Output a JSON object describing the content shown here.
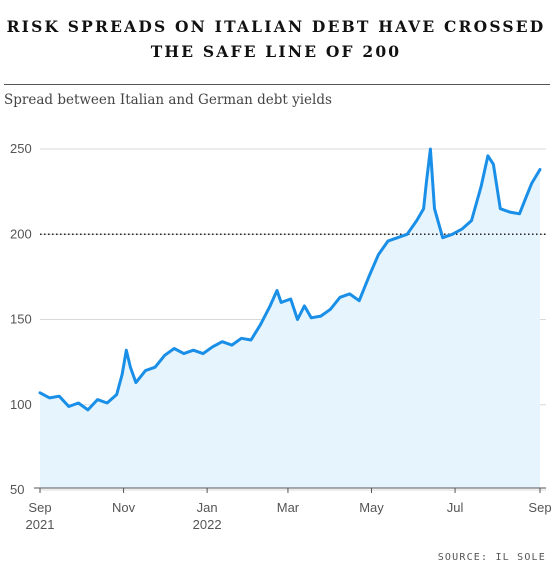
{
  "title_line1": "RISK SPREADS ON ITALIAN DEBT HAVE CROSSED",
  "title_line2": "THE SAFE LINE OF 200",
  "subtitle": "Spread between Italian and German debt yields",
  "source": "SOURCE: IL SOLE",
  "colors": {
    "line": "#1a8fe8",
    "fill": "#e6f4fd",
    "grid": "#d9d9d9",
    "reference": "#222222"
  },
  "chart_data": {
    "type": "area",
    "title": "RISK SPREADS ON ITALIAN DEBT HAVE CROSSED THE SAFE LINE OF 200",
    "subtitle": "Spread between Italian and German debt yields",
    "ylim": [
      50,
      250
    ],
    "yticks": [
      50,
      100,
      150,
      200,
      250
    ],
    "xlim": [
      "2021-09-01",
      "2022-09-01"
    ],
    "xticks": [
      {
        "date": "2021-09-01",
        "label": "Sep",
        "sublabel": "2021"
      },
      {
        "date": "2021-11-01",
        "label": "Nov",
        "sublabel": ""
      },
      {
        "date": "2022-01-01",
        "label": "Jan",
        "sublabel": "2022"
      },
      {
        "date": "2022-03-01",
        "label": "Mar",
        "sublabel": ""
      },
      {
        "date": "2022-05-01",
        "label": "May",
        "sublabel": ""
      },
      {
        "date": "2022-07-01",
        "label": "Jul",
        "sublabel": ""
      },
      {
        "date": "2022-09-01",
        "label": "Sep",
        "sublabel": ""
      }
    ],
    "reference_line": {
      "value": 200,
      "style": "dotted"
    },
    "grid": "horizontal",
    "series": [
      {
        "points": [
          [
            "2021-09-01",
            107
          ],
          [
            "2021-09-08",
            104
          ],
          [
            "2021-09-15",
            105
          ],
          [
            "2021-09-22",
            99
          ],
          [
            "2021-09-29",
            101
          ],
          [
            "2021-10-06",
            97
          ],
          [
            "2021-10-13",
            103
          ],
          [
            "2021-10-20",
            101
          ],
          [
            "2021-10-27",
            106
          ],
          [
            "2021-10-31",
            118
          ],
          [
            "2021-11-03",
            132
          ],
          [
            "2021-11-06",
            122
          ],
          [
            "2021-11-10",
            113
          ],
          [
            "2021-11-17",
            120
          ],
          [
            "2021-11-24",
            122
          ],
          [
            "2021-12-01",
            129
          ],
          [
            "2021-12-08",
            133
          ],
          [
            "2021-12-15",
            130
          ],
          [
            "2021-12-22",
            132
          ],
          [
            "2021-12-29",
            130
          ],
          [
            "2022-01-05",
            134
          ],
          [
            "2022-01-12",
            137
          ],
          [
            "2022-01-19",
            135
          ],
          [
            "2022-01-26",
            139
          ],
          [
            "2022-02-02",
            138
          ],
          [
            "2022-02-09",
            147
          ],
          [
            "2022-02-16",
            158
          ],
          [
            "2022-02-21",
            167
          ],
          [
            "2022-02-24",
            160
          ],
          [
            "2022-03-03",
            162
          ],
          [
            "2022-03-08",
            150
          ],
          [
            "2022-03-13",
            158
          ],
          [
            "2022-03-18",
            151
          ],
          [
            "2022-03-25",
            152
          ],
          [
            "2022-04-01",
            156
          ],
          [
            "2022-04-08",
            163
          ],
          [
            "2022-04-15",
            165
          ],
          [
            "2022-04-22",
            161
          ],
          [
            "2022-04-29",
            175
          ],
          [
            "2022-05-06",
            188
          ],
          [
            "2022-05-13",
            196
          ],
          [
            "2022-05-20",
            198
          ],
          [
            "2022-05-27",
            200
          ],
          [
            "2022-06-03",
            208
          ],
          [
            "2022-06-08",
            215
          ],
          [
            "2022-06-10",
            230
          ],
          [
            "2022-06-13",
            250
          ],
          [
            "2022-06-16",
            215
          ],
          [
            "2022-06-22",
            198
          ],
          [
            "2022-06-29",
            200
          ],
          [
            "2022-07-06",
            203
          ],
          [
            "2022-07-13",
            208
          ],
          [
            "2022-07-20",
            228
          ],
          [
            "2022-07-25",
            246
          ],
          [
            "2022-07-29",
            241
          ],
          [
            "2022-08-03",
            215
          ],
          [
            "2022-08-10",
            213
          ],
          [
            "2022-08-17",
            212
          ],
          [
            "2022-08-22",
            222
          ],
          [
            "2022-08-26",
            230
          ],
          [
            "2022-09-01",
            238
          ]
        ]
      }
    ]
  }
}
